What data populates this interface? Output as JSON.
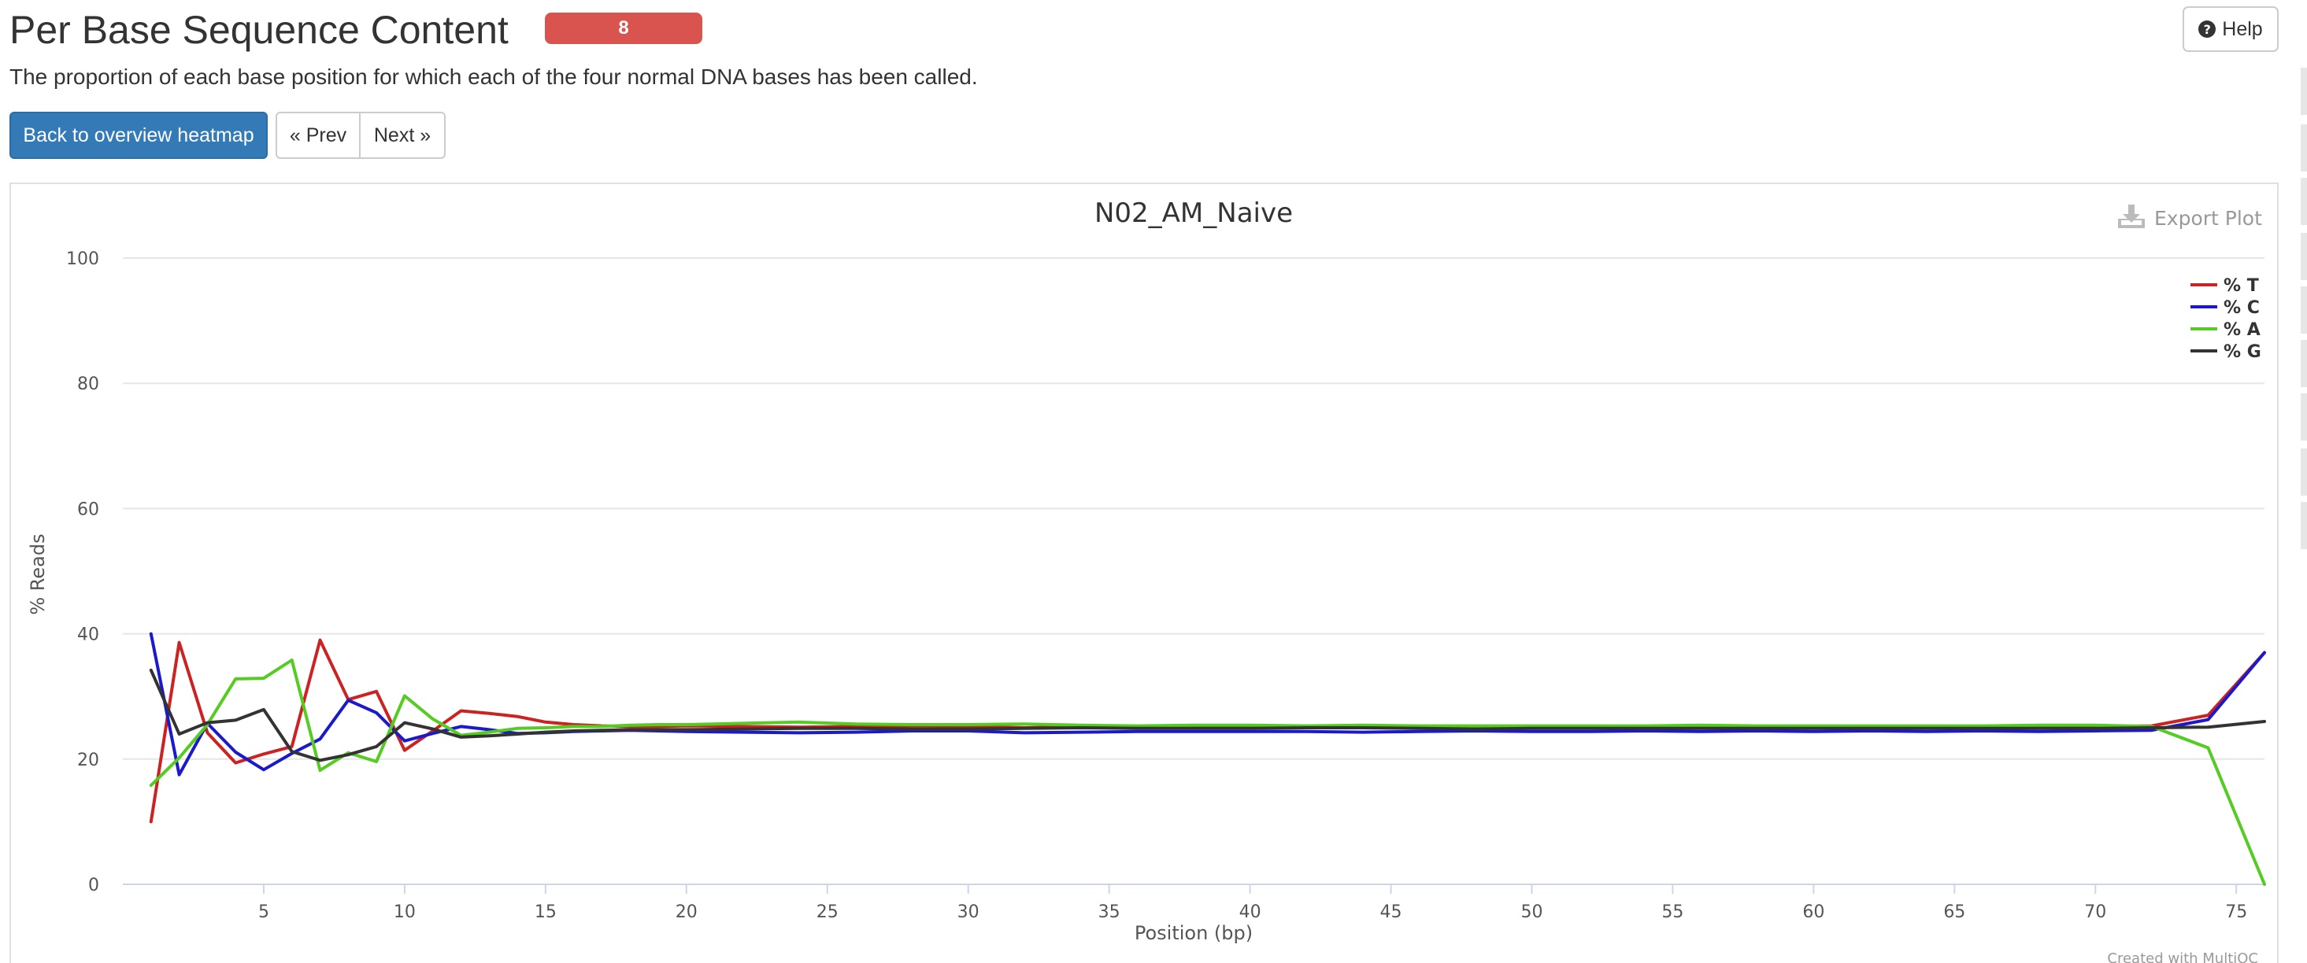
{
  "header": {
    "title": "Per Base Sequence Content",
    "badge": "8",
    "help_label": "Help"
  },
  "description": "The proportion of each base position for which each of the four normal DNA bases has been called.",
  "nav": {
    "back_label": "Back to overview heatmap",
    "prev_label": "« Prev",
    "next_label": "Next »"
  },
  "plot": {
    "export_label": "Export Plot",
    "credit": "Created with MultiQC"
  },
  "chart_data": {
    "type": "line",
    "title": "N02_AM_Naive",
    "xlabel": "Position (bp)",
    "ylabel": "% Reads",
    "xlim": [
      0,
      76
    ],
    "ylim": [
      0,
      100
    ],
    "x_ticks": [
      5,
      10,
      15,
      20,
      25,
      30,
      35,
      40,
      45,
      50,
      55,
      60,
      65,
      70,
      75
    ],
    "y_ticks": [
      0,
      20,
      40,
      60,
      80,
      100
    ],
    "grid": true,
    "legend_position": "top-right",
    "x": [
      1,
      2,
      3,
      4,
      5,
      6,
      7,
      8,
      9,
      10,
      11,
      12,
      13,
      14,
      15,
      16,
      17,
      18,
      19,
      20,
      22,
      24,
      26,
      28,
      30,
      32,
      34,
      36,
      38,
      40,
      42,
      44,
      46,
      48,
      50,
      52,
      54,
      56,
      58,
      60,
      62,
      64,
      66,
      68,
      70,
      72,
      74,
      76
    ],
    "series": [
      {
        "name": "% T",
        "color": "#cc2222",
        "values": [
          10,
          38.6,
          24.2,
          19.4,
          20.8,
          22,
          39,
          29.5,
          30.8,
          21.4,
          24.5,
          27.7,
          27.3,
          26.8,
          25.9,
          25.5,
          25.3,
          25.2,
          25.2,
          25.3,
          25.2,
          25.1,
          25.2,
          25.3,
          25.2,
          25,
          25.2,
          25.1,
          25.2,
          25.1,
          25.2,
          25.1,
          25.2,
          25.2,
          25.1,
          25.2,
          25.2,
          25.1,
          25.2,
          25.1,
          25.2,
          25.2,
          25.1,
          25.2,
          25.2,
          25.3,
          27,
          37
        ]
      },
      {
        "name": "% C",
        "color": "#1a1acc",
        "values": [
          40,
          17.5,
          25.7,
          21.1,
          18.3,
          20.9,
          23.2,
          29.4,
          27.4,
          22.9,
          24.1,
          25.2,
          24.7,
          24.1,
          24.2,
          24.4,
          24.5,
          24.6,
          24.5,
          24.4,
          24.3,
          24.2,
          24.3,
          24.5,
          24.5,
          24.2,
          24.3,
          24.4,
          24.4,
          24.4,
          24.4,
          24.3,
          24.4,
          24.5,
          24.4,
          24.4,
          24.5,
          24.4,
          24.5,
          24.4,
          24.5,
          24.4,
          24.5,
          24.4,
          24.5,
          24.6,
          26.3,
          37
        ]
      },
      {
        "name": "% A",
        "color": "#55cc22",
        "values": [
          15.8,
          20.2,
          25.5,
          32.8,
          32.9,
          35.8,
          18.2,
          21,
          19.6,
          30.1,
          26.4,
          23.8,
          24.3,
          24.9,
          25,
          25.2,
          25.2,
          25.4,
          25.5,
          25.5,
          25.7,
          25.9,
          25.6,
          25.5,
          25.5,
          25.6,
          25.4,
          25.3,
          25.4,
          25.4,
          25.3,
          25.4,
          25.3,
          25.3,
          25.3,
          25.3,
          25.3,
          25.4,
          25.3,
          25.3,
          25.3,
          25.3,
          25.3,
          25.4,
          25.4,
          25.2,
          21.8,
          0
        ]
      },
      {
        "name": "% G",
        "color": "#333333",
        "values": [
          34.2,
          24,
          25.8,
          26.2,
          27.9,
          21.2,
          19.8,
          20.7,
          22,
          25.8,
          24.8,
          23.5,
          23.7,
          24,
          24.3,
          24.5,
          24.6,
          24.7,
          24.7,
          24.7,
          24.8,
          24.9,
          24.9,
          24.8,
          24.8,
          24.9,
          25,
          24.9,
          24.9,
          24.9,
          25,
          25,
          24.9,
          24.8,
          24.9,
          24.9,
          24.9,
          24.9,
          24.9,
          24.9,
          24.9,
          24.9,
          24.9,
          24.9,
          24.9,
          25,
          25.1,
          26
        ]
      }
    ]
  }
}
